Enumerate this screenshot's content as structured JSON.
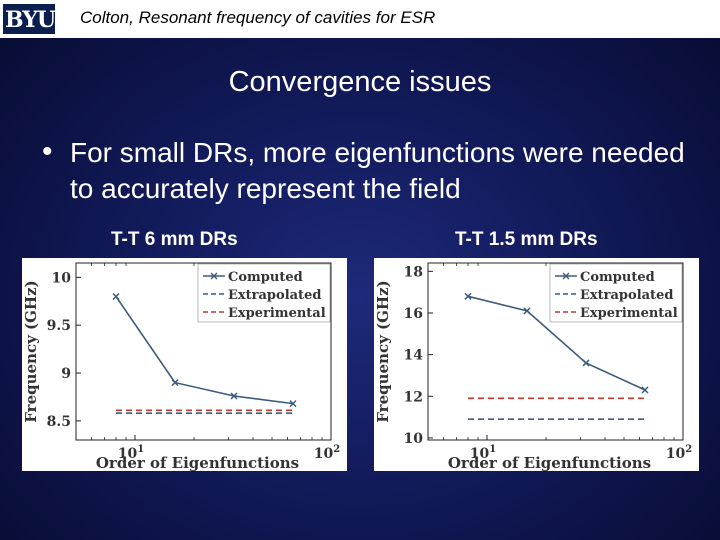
{
  "header": {
    "logo_text": "BYU",
    "title": "Colton, Resonant frequency of cavities for ESR"
  },
  "slide": {
    "title": "Convergence issues",
    "bullet": "For small DRs, more eigenfunctions were needed to accurately represent the field"
  },
  "chart_data": [
    {
      "type": "line",
      "title": "T-T 6 mm DRs",
      "xlabel": "Order of Eigenfunctions",
      "ylabel": "Frequency (GHz)",
      "xscale": "log",
      "xlim": [
        5,
        100
      ],
      "ylim": [
        8.3,
        10.15
      ],
      "xtick_labels": [
        "10^1",
        "10^2"
      ],
      "yticks": [
        8.5,
        9,
        9.5,
        10
      ],
      "ytick_labels": [
        "8.5",
        "9",
        "9.5",
        "10"
      ],
      "legend_position": "top-right",
      "series": [
        {
          "name": "Computed",
          "style": "solid-x",
          "color": "#3b5b7f",
          "x": [
            8,
            16,
            32,
            64
          ],
          "y": [
            9.8,
            8.9,
            8.76,
            8.68
          ]
        },
        {
          "name": "Extrapolated",
          "style": "dashed",
          "color": "#3b5b7f",
          "x": [
            8,
            64
          ],
          "y": [
            8.58,
            8.58
          ]
        },
        {
          "name": "Experimental",
          "style": "dashed",
          "color": "#c0392b",
          "x": [
            8,
            64
          ],
          "y": [
            8.61,
            8.61
          ]
        }
      ]
    },
    {
      "type": "line",
      "title": "T-T 1.5 mm DRs",
      "xlabel": "Order of Eigenfunctions",
      "ylabel": "Frequency (GHz)",
      "xscale": "log",
      "xlim": [
        5,
        100
      ],
      "ylim": [
        9.9,
        18.4
      ],
      "xtick_labels": [
        "10^1",
        "10^2"
      ],
      "yticks": [
        10,
        12,
        14,
        16,
        18
      ],
      "ytick_labels": [
        "10",
        "12",
        "14",
        "16",
        "18"
      ],
      "legend_position": "top-right",
      "series": [
        {
          "name": "Computed",
          "style": "solid-x",
          "color": "#3b5b7f",
          "x": [
            8,
            16,
            32,
            64
          ],
          "y": [
            16.8,
            16.1,
            13.6,
            12.3
          ]
        },
        {
          "name": "Extrapolated",
          "style": "dashed",
          "color": "#3b5b7f",
          "x": [
            8,
            64
          ],
          "y": [
            10.9,
            10.9
          ]
        },
        {
          "name": "Experimental",
          "style": "dashed",
          "color": "#c0392b",
          "x": [
            8,
            64
          ],
          "y": [
            11.9,
            11.9
          ]
        }
      ]
    }
  ]
}
